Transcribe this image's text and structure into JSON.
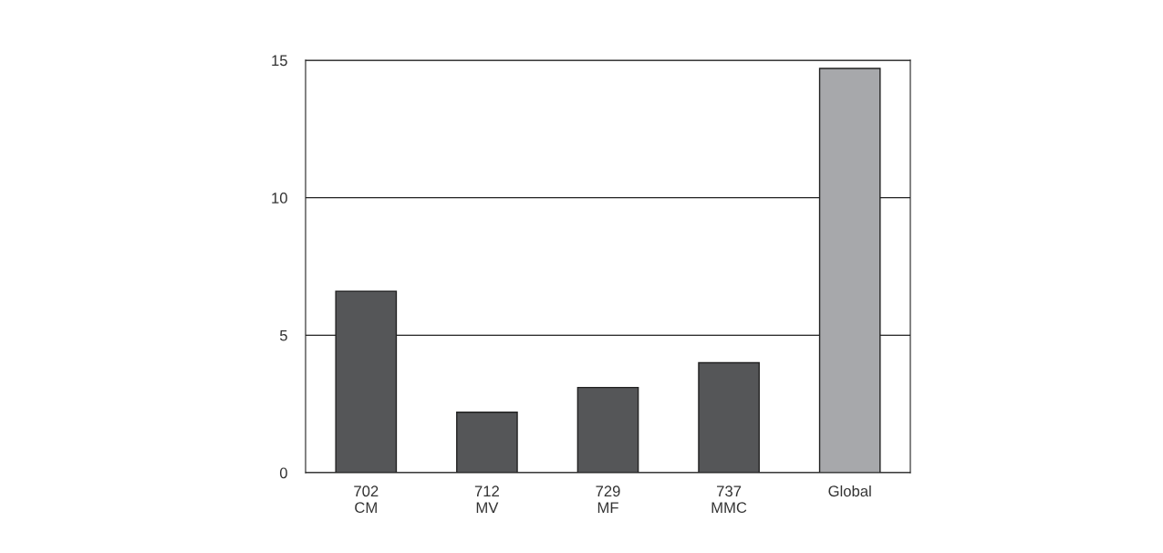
{
  "chart_data": {
    "type": "bar",
    "categories": [
      "702\nCM",
      "712\nMV",
      "729\nMF",
      "737\nMMC",
      "Global"
    ],
    "values": [
      6.6,
      2.2,
      3.1,
      4.0,
      14.7
    ],
    "colors": [
      "#555658",
      "#555658",
      "#555658",
      "#555658",
      "#a7a8ab"
    ],
    "ylim": [
      0,
      15
    ],
    "yticks": [
      0,
      5,
      10,
      15
    ],
    "grid": "y",
    "legend": false
  }
}
